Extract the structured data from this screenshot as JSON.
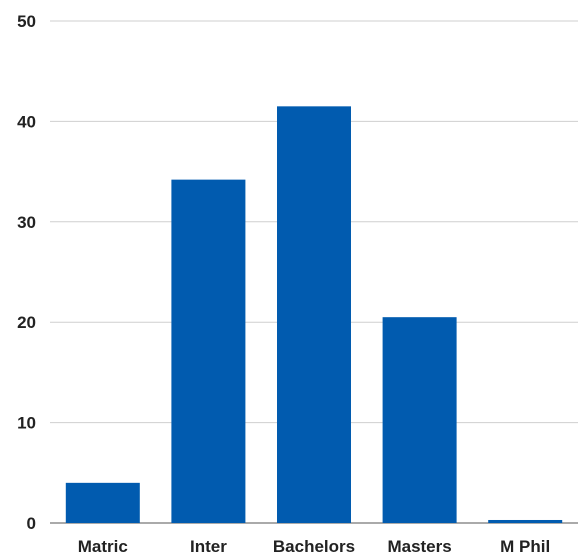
{
  "chart_data": {
    "type": "bar",
    "title": "",
    "xlabel": "",
    "ylabel": "",
    "categories": [
      "Matric",
      "Inter",
      "Bachelors",
      "Masters",
      "M Phil"
    ],
    "values": [
      4,
      34.2,
      41.5,
      20.5,
      0.3
    ],
    "ylim": [
      0,
      50
    ],
    "yticks": [
      0,
      10,
      20,
      30,
      40,
      50
    ],
    "grid": true,
    "legend": "none",
    "bar_color": "#015BAF",
    "grid_color": "#cfcfcf",
    "text_color": "#222222"
  }
}
